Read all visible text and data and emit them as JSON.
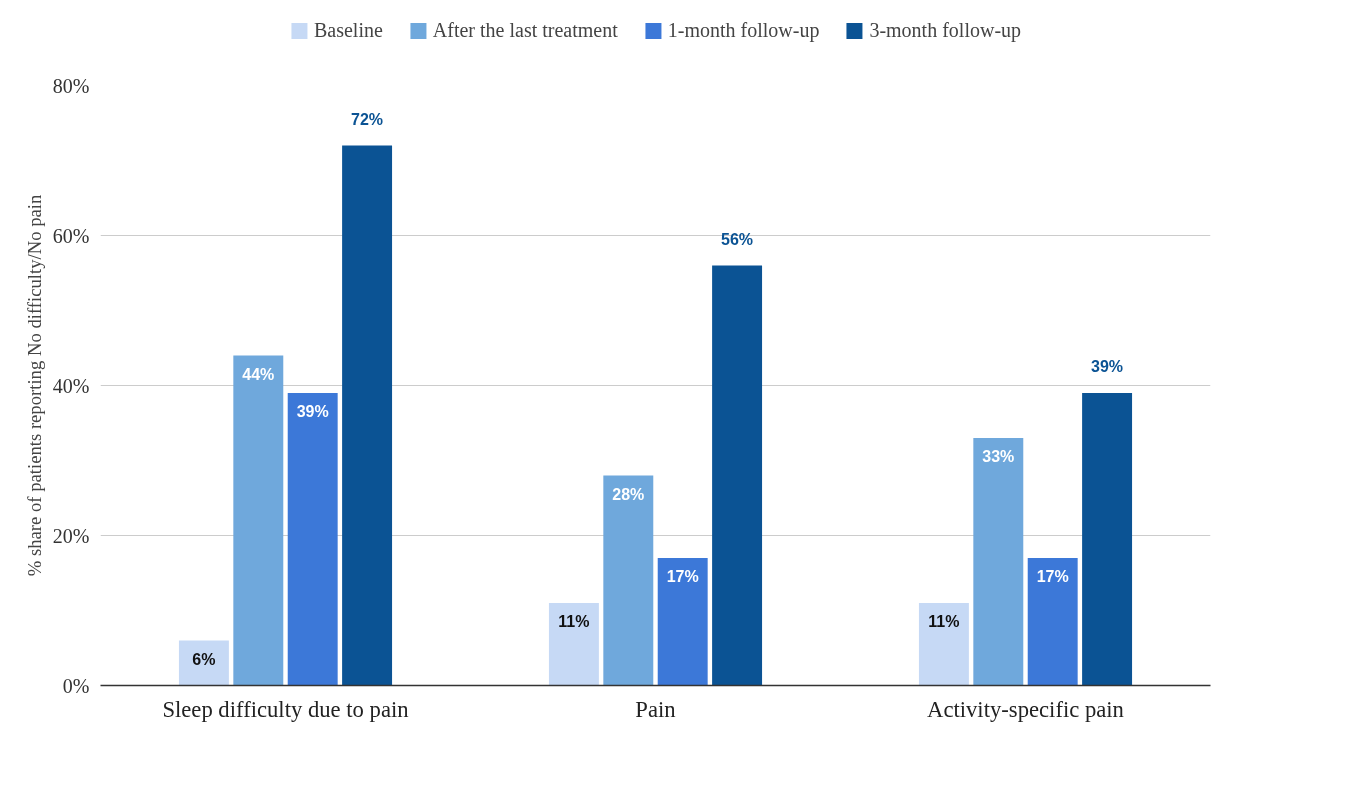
{
  "chart_data": {
    "type": "bar",
    "ylabel": "% share of patients reporting No difficulty/No pain",
    "categories": [
      "Sleep difficulty due to pain",
      "Pain",
      "Activity-specific pain"
    ],
    "series": [
      {
        "name": "Baseline",
        "color": "#c6d9f5",
        "values": [
          6,
          11,
          11
        ],
        "value_labels": [
          "6%",
          "11%",
          "11%"
        ]
      },
      {
        "name": "After the last treatment",
        "color": "#6fa8dc",
        "values": [
          44,
          28,
          33
        ],
        "value_labels": [
          "44%",
          "28%",
          "33%"
        ]
      },
      {
        "name": "1-month follow-up",
        "color": "#3c78d8",
        "values": [
          39,
          17,
          17
        ],
        "value_labels": [
          "39%",
          "17%",
          "17%"
        ]
      },
      {
        "name": "3-month follow-up",
        "color": "#0b5394",
        "values": [
          72,
          56,
          39
        ],
        "value_labels": [
          "72%",
          "56%",
          "39%"
        ]
      }
    ],
    "ylim": [
      0,
      80
    ],
    "yticks": [
      {
        "value": 0,
        "label": "0%"
      },
      {
        "value": 20,
        "label": "20%"
      },
      {
        "value": 40,
        "label": "40%"
      },
      {
        "value": 60,
        "label": "60%"
      },
      {
        "value": 80,
        "label": "80%"
      }
    ],
    "grid": "y",
    "legend": "top"
  }
}
